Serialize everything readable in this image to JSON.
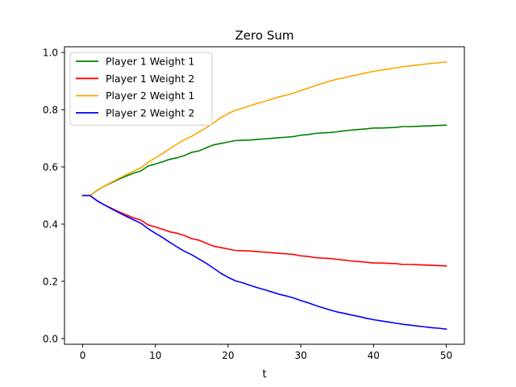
{
  "chart_data": {
    "type": "line",
    "title": "Zero Sum",
    "xlabel": "t",
    "ylabel": "",
    "xlim": [
      -2.5,
      52.5
    ],
    "ylim": [
      -0.02,
      1.02
    ],
    "xticks": [
      0,
      10,
      20,
      30,
      40,
      50
    ],
    "xtick_labels": [
      "0",
      "10",
      "20",
      "30",
      "40",
      "50"
    ],
    "yticks": [
      0.0,
      0.2,
      0.4,
      0.6,
      0.8,
      1.0
    ],
    "ytick_labels": [
      "0.0",
      "0.2",
      "0.4",
      "0.6",
      "0.8",
      "1.0"
    ],
    "grid": false,
    "legend_position": "top-left",
    "x": [
      0,
      1,
      2,
      3,
      4,
      5,
      6,
      7,
      8,
      9,
      10,
      11,
      12,
      13,
      14,
      15,
      16,
      17,
      18,
      19,
      20,
      21,
      22,
      23,
      24,
      25,
      26,
      27,
      28,
      29,
      30,
      31,
      32,
      33,
      34,
      35,
      36,
      37,
      38,
      39,
      40,
      41,
      42,
      43,
      44,
      45,
      46,
      47,
      48,
      49,
      50
    ],
    "series": [
      {
        "name": "Player 1 Weight 1",
        "color": "#008000",
        "values": [
          0.5,
          0.5,
          0.518,
          0.533,
          0.545,
          0.557,
          0.568,
          0.578,
          0.586,
          0.603,
          0.61,
          0.618,
          0.627,
          0.632,
          0.64,
          0.651,
          0.656,
          0.667,
          0.677,
          0.682,
          0.687,
          0.692,
          0.693,
          0.694,
          0.696,
          0.698,
          0.7,
          0.702,
          0.704,
          0.706,
          0.711,
          0.713,
          0.717,
          0.719,
          0.72,
          0.723,
          0.726,
          0.729,
          0.731,
          0.733,
          0.736,
          0.736,
          0.737,
          0.738,
          0.741,
          0.741,
          0.742,
          0.743,
          0.744,
          0.745,
          0.746
        ]
      },
      {
        "name": "Player 1 Weight 2",
        "color": "#ff0000",
        "values": [
          0.5,
          0.5,
          0.482,
          0.467,
          0.455,
          0.443,
          0.432,
          0.422,
          0.414,
          0.397,
          0.39,
          0.382,
          0.373,
          0.368,
          0.36,
          0.349,
          0.344,
          0.333,
          0.323,
          0.318,
          0.313,
          0.308,
          0.307,
          0.306,
          0.304,
          0.302,
          0.3,
          0.298,
          0.296,
          0.294,
          0.289,
          0.287,
          0.283,
          0.281,
          0.28,
          0.277,
          0.274,
          0.271,
          0.269,
          0.267,
          0.264,
          0.264,
          0.263,
          0.262,
          0.259,
          0.259,
          0.258,
          0.257,
          0.256,
          0.255,
          0.254
        ]
      },
      {
        "name": "Player 2 Weight 1",
        "color": "#ffa500",
        "values": [
          0.5,
          0.5,
          0.519,
          0.533,
          0.547,
          0.56,
          0.573,
          0.585,
          0.597,
          0.616,
          0.632,
          0.647,
          0.664,
          0.68,
          0.695,
          0.707,
          0.722,
          0.737,
          0.754,
          0.772,
          0.786,
          0.798,
          0.805,
          0.814,
          0.822,
          0.829,
          0.837,
          0.845,
          0.851,
          0.858,
          0.867,
          0.875,
          0.884,
          0.892,
          0.9,
          0.907,
          0.912,
          0.918,
          0.923,
          0.929,
          0.934,
          0.938,
          0.942,
          0.946,
          0.95,
          0.953,
          0.956,
          0.959,
          0.962,
          0.964,
          0.967
        ]
      },
      {
        "name": "Player 2 Weight 2",
        "color": "#0000ff",
        "values": [
          0.5,
          0.5,
          0.481,
          0.467,
          0.453,
          0.44,
          0.427,
          0.415,
          0.403,
          0.384,
          0.368,
          0.353,
          0.336,
          0.32,
          0.305,
          0.293,
          0.278,
          0.263,
          0.246,
          0.228,
          0.214,
          0.202,
          0.195,
          0.186,
          0.178,
          0.171,
          0.163,
          0.155,
          0.149,
          0.142,
          0.133,
          0.125,
          0.116,
          0.108,
          0.1,
          0.093,
          0.088,
          0.082,
          0.077,
          0.071,
          0.066,
          0.062,
          0.058,
          0.054,
          0.05,
          0.047,
          0.044,
          0.041,
          0.038,
          0.036,
          0.033
        ]
      }
    ]
  }
}
